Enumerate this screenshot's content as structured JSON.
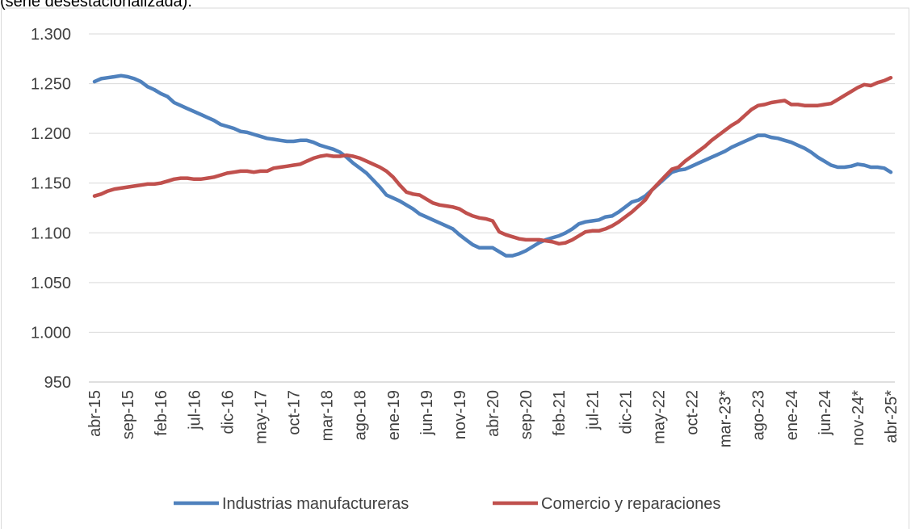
{
  "chart_data": {
    "type": "line",
    "subtitle": "(serie desestacionalizada).",
    "categories": [
      "abr-15",
      null,
      null,
      null,
      null,
      "sep-15",
      null,
      null,
      null,
      null,
      "feb-16",
      null,
      null,
      null,
      null,
      "jul-16",
      null,
      null,
      null,
      null,
      "dic-16",
      null,
      null,
      null,
      null,
      "may-17",
      null,
      null,
      null,
      null,
      "oct-17",
      null,
      null,
      null,
      null,
      "mar-18",
      null,
      null,
      null,
      null,
      "ago-18",
      null,
      null,
      null,
      null,
      "ene-19",
      null,
      null,
      null,
      null,
      "jun-19",
      null,
      null,
      null,
      null,
      "nov-19",
      null,
      null,
      null,
      null,
      "abr-20",
      null,
      null,
      null,
      null,
      "sep-20",
      null,
      null,
      null,
      null,
      "feb-21",
      null,
      null,
      null,
      null,
      "jul-21",
      null,
      null,
      null,
      null,
      "dic-21",
      null,
      null,
      null,
      null,
      "may-22",
      null,
      null,
      null,
      null,
      "oct-22",
      null,
      null,
      null,
      null,
      "mar-23*",
      null,
      null,
      null,
      null,
      "ago-23",
      null,
      null,
      null,
      null,
      "ene-24",
      null,
      null,
      null,
      null,
      "jun-24",
      null,
      null,
      null,
      null,
      "nov-24*",
      null,
      null,
      null,
      null,
      "abr-25*"
    ],
    "series": [
      {
        "name": "Industrias manufactureras",
        "color": "#4f81bd",
        "values": [
          1252,
          1255,
          1256,
          1257,
          1258,
          1257,
          1255,
          1252,
          1247,
          1244,
          1240,
          1237,
          1231,
          1228,
          1225,
          1222,
          1219,
          1216,
          1213,
          1209,
          1207,
          1205,
          1202,
          1201,
          1199,
          1197,
          1195,
          1194,
          1193,
          1192,
          1192,
          1193,
          1193,
          1191,
          1188,
          1186,
          1184,
          1181,
          1176,
          1170,
          1165,
          1160,
          1153,
          1146,
          1138,
          1135,
          1132,
          1128,
          1124,
          1119,
          1116,
          1113,
          1110,
          1107,
          1104,
          1098,
          1093,
          1088,
          1085,
          1085,
          1085,
          1081,
          1077,
          1077,
          1079,
          1082,
          1086,
          1090,
          1093,
          1095,
          1097,
          1100,
          1104,
          1109,
          1111,
          1112,
          1113,
          1116,
          1117,
          1121,
          1126,
          1131,
          1133,
          1137,
          1143,
          1149,
          1155,
          1161,
          1163,
          1164,
          1167,
          1170,
          1173,
          1176,
          1179,
          1182,
          1186,
          1189,
          1192,
          1195,
          1198,
          1198,
          1196,
          1195,
          1193,
          1191,
          1188,
          1185,
          1181,
          1176,
          1172,
          1168,
          1166,
          1166,
          1167,
          1169,
          1168,
          1166,
          1166,
          1165,
          1161
        ]
      },
      {
        "name": "Comercio y reparaciones",
        "color": "#c0504d",
        "values": [
          1137,
          1139,
          1142,
          1144,
          1145,
          1146,
          1147,
          1148,
          1149,
          1149,
          1150,
          1152,
          1154,
          1155,
          1155,
          1154,
          1154,
          1155,
          1156,
          1158,
          1160,
          1161,
          1162,
          1162,
          1161,
          1162,
          1162,
          1165,
          1166,
          1167,
          1168,
          1169,
          1172,
          1175,
          1177,
          1178,
          1177,
          1177,
          1178,
          1177,
          1175,
          1172,
          1169,
          1166,
          1162,
          1156,
          1148,
          1141,
          1139,
          1138,
          1134,
          1130,
          1128,
          1127,
          1126,
          1124,
          1120,
          1117,
          1115,
          1114,
          1112,
          1101,
          1098,
          1096,
          1094,
          1093,
          1093,
          1093,
          1092,
          1091,
          1089,
          1090,
          1093,
          1097,
          1101,
          1102,
          1102,
          1104,
          1107,
          1111,
          1116,
          1121,
          1127,
          1133,
          1143,
          1150,
          1157,
          1164,
          1166,
          1172,
          1177,
          1182,
          1187,
          1193,
          1198,
          1203,
          1208,
          1212,
          1218,
          1224,
          1228,
          1229,
          1231,
          1232,
          1233,
          1229,
          1229,
          1228,
          1228,
          1228,
          1229,
          1230,
          1234,
          1238,
          1242,
          1246,
          1249,
          1248,
          1251,
          1253,
          1256
        ]
      }
    ],
    "ylim": [
      950,
      1300
    ],
    "yticks": [
      950,
      {
        "value": 1000,
        "label": "1.000"
      },
      {
        "value": 1050,
        "label": "1.050"
      },
      {
        "value": 1100,
        "label": "1.100"
      },
      {
        "value": 1150,
        "label": "1.150"
      },
      {
        "value": 1200,
        "label": "1.200"
      },
      {
        "value": 1250,
        "label": "1.250"
      },
      {
        "value": 1300,
        "label": "1.300"
      }
    ],
    "grid": true,
    "legend": "bottom"
  }
}
